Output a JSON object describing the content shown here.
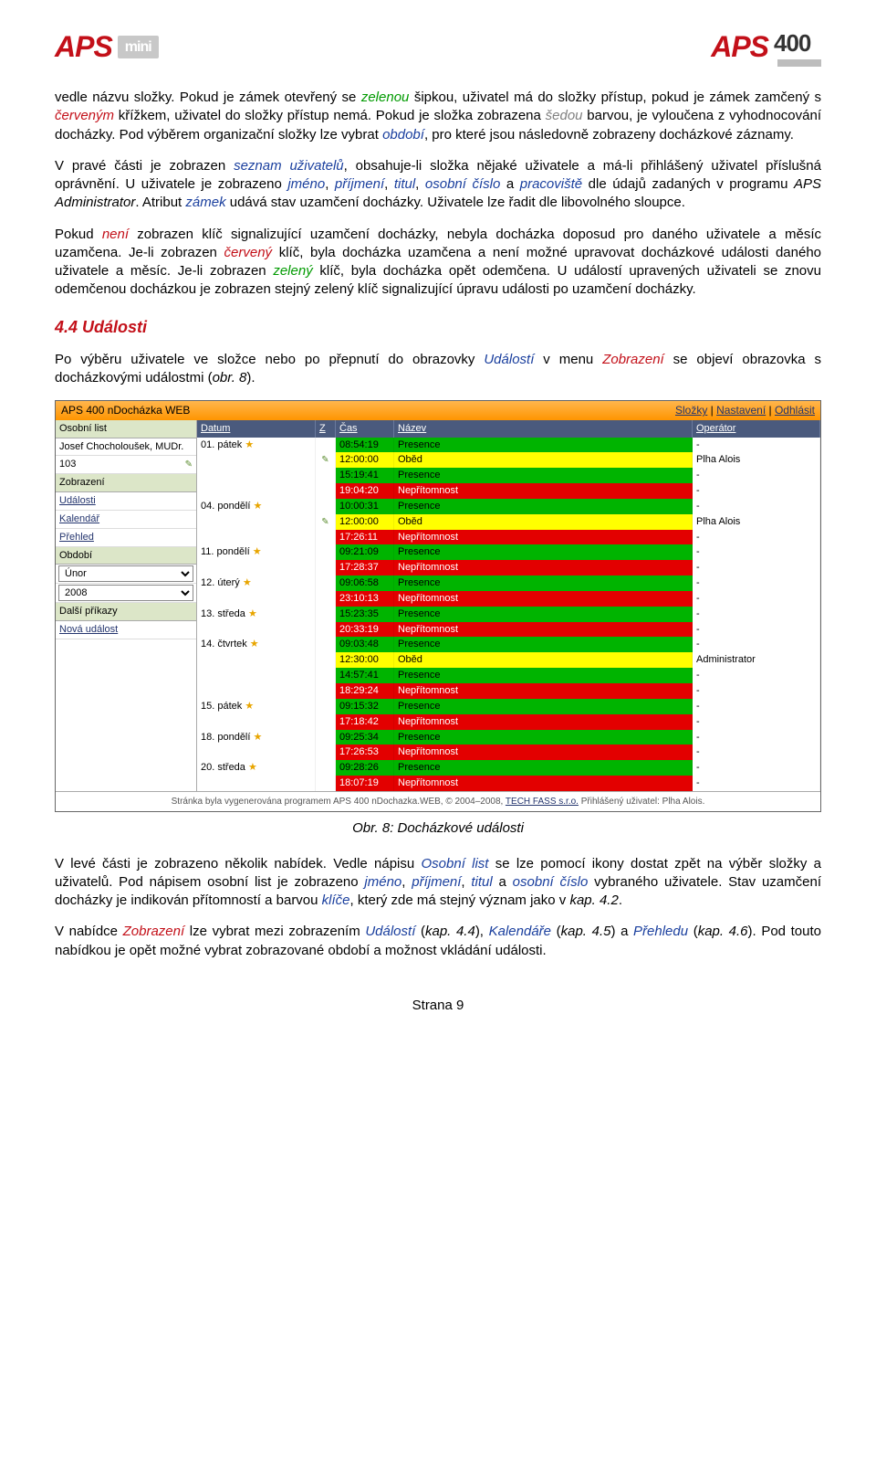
{
  "logos": {
    "left_aps": "APS",
    "left_sub": "mini",
    "right_aps": "APS",
    "right_num": "400"
  },
  "paragraphs": {
    "p1a": "vedle názvu složky. Pokud je zámek otevřený se ",
    "p1_green": "zelenou",
    "p1b": " šipkou, uživatel má do složky přístup, pokud je zámek zamčený s ",
    "p1_red": "červeným",
    "p1c": " křížkem, uživatel do složky přístup nemá. Pokud je složka zobrazena ",
    "p1_grey": "šedou",
    "p1d": " barvou, je vyloučena z vyhodnocování docházky. Pod výběrem organizační složky lze vybrat ",
    "p1_obdobi": "období",
    "p1e": ", pro které jsou následovně zobrazeny docházkové záznamy.",
    "p2a": "V pravé části je zobrazen ",
    "p2_seznam": "seznam uživatelů",
    "p2b": ", obsahuje-li složka nějaké uživatele a má-li přihlášený uživatel příslušná oprávnění. U uživatele je zobrazeno ",
    "p2_jmeno": "jméno",
    "p2c": ", ",
    "p2_prijmeni": "příjmení",
    "p2d": ", ",
    "p2_titul": "titul",
    "p2e": ", ",
    "p2_osobni": "osobní číslo",
    "p2f": " a ",
    "p2_prac": "pracoviště",
    "p2g": " dle údajů zadaných v programu ",
    "p2_aps": "APS Administrator",
    "p2h": ". Atribut ",
    "p2_zamek": "zámek",
    "p2i": " udává stav uzamčení docházky. Uživatele lze řadit dle libovolného sloupce.",
    "p3a": "Pokud ",
    "p3_neni": "není",
    "p3b": " zobrazen klíč signalizující uzamčení docházky, nebyla docházka doposud pro daného uživatele a měsíc uzamčena. Je-li zobrazen ",
    "p3_red": "červený",
    "p3c": " klíč, byla docházka uzamčena a není možné upravovat docházkové události daného uživatele a měsíc. Je-li zobrazen ",
    "p3_green": "zelený",
    "p3d": " klíč, byla docházka opět odemčena. U událostí upravených uživateli se znovu odemčenou docházkou je zobrazen stejný zelený klíč signalizující úpravu události po uzamčení docházky.",
    "h4": "4.4 Události",
    "p4a": "Po výběru uživatele ve složce nebo po přepnutí do obrazovky ",
    "p4_ud": "Událostí",
    "p4b": " v menu ",
    "p4_zo": "Zobrazení",
    "p4c": " se objeví obrazovka s docházkovými událostmi (",
    "p4_obr": "obr. 8",
    "p4d": ").",
    "caption": "Obr. 8: Docházkové události",
    "p5a": "V levé části je zobrazeno několik nabídek. Vedle nápisu ",
    "p5_ol": "Osobní list",
    "p5b": " se lze pomocí ikony dostat zpět na výběr složky a uživatelů. Pod nápisem osobní list je zobrazeno ",
    "p5_jm": "jméno",
    "p5c": ", ",
    "p5_pr": "příjmení",
    "p5d": ", ",
    "p5_ti": "titul",
    "p5e": " a ",
    "p5_oc": "osobní číslo",
    "p5f": " vybraného uživatele. Stav uzamčení docházky je indikován přítomností a barvou ",
    "p5_kl": "klíče",
    "p5g": ", který zde má stejný význam jako v ",
    "p5_k42": "kap. 4.2",
    "p5h": ".",
    "p6a": "V nabídce ",
    "p6_zo": "Zobrazení",
    "p6b": " lze vybrat mezi zobrazením ",
    "p6_ud": "Událostí",
    "p6c": " (",
    "p6_k44": "kap. 4.4",
    "p6d": "), ",
    "p6_ka": "Kalendáře",
    "p6e": " (",
    "p6_k45": "kap. 4.5",
    "p6f": ") a ",
    "p6_pr": "Přehledu",
    "p6g": " (",
    "p6_k46": "kap. 4.6",
    "p6h": "). Pod touto nabídkou je opět možné vybrat zobrazované období a možnost vkládání události."
  },
  "screenshot": {
    "topbar_title": "APS 400 nDocházka WEB",
    "topbar_links": [
      "Složky",
      "Nastavení",
      "Odhlásit"
    ],
    "sidebar": {
      "sect_osobni": "Osobní list",
      "user_name": "Josef Chocholoušek, MUDr.",
      "user_num": "103",
      "sect_zobr": "Zobrazení",
      "links_zobr": [
        "Události",
        "Kalendář",
        "Přehled"
      ],
      "sect_obd": "Období",
      "sel_month": "Únor",
      "sel_year": "2008",
      "sect_dalsi": "Další příkazy",
      "link_nova": "Nová událost"
    },
    "grid": {
      "headers": [
        "Datum",
        "Z",
        "Čas",
        "Název",
        "Operátor"
      ],
      "colors": {
        "green": "#00b400",
        "yellow": "#ffff00",
        "red": "#e30000",
        "green_text": "#000000",
        "yellow_text": "#000000",
        "red_text": "#ffffff"
      },
      "rows": [
        {
          "date": "01. pátek",
          "star": true,
          "z": "",
          "cas": "08:54:19",
          "cbg": "green",
          "nazev": "Presence",
          "op": "-"
        },
        {
          "date": "",
          "star": false,
          "z": "✎",
          "cas": "12:00:00",
          "cbg": "yellow",
          "nazev": "Oběd",
          "op": "Plha Alois"
        },
        {
          "date": "",
          "star": false,
          "z": "",
          "cas": "15:19:41",
          "cbg": "green",
          "nazev": "Presence",
          "op": "-"
        },
        {
          "date": "",
          "star": false,
          "z": "",
          "cas": "19:04:20",
          "cbg": "red",
          "nazev": "Nepřítomnost",
          "op": "-"
        },
        {
          "date": "04. pondělí",
          "star": true,
          "z": "",
          "cas": "10:00:31",
          "cbg": "green",
          "nazev": "Presence",
          "op": "-"
        },
        {
          "date": "",
          "star": false,
          "z": "✎",
          "cas": "12:00:00",
          "cbg": "yellow",
          "nazev": "Oběd",
          "op": "Plha Alois"
        },
        {
          "date": "",
          "star": false,
          "z": "",
          "cas": "17:26:11",
          "cbg": "red",
          "nazev": "Nepřítomnost",
          "op": "-"
        },
        {
          "date": "11. pondělí",
          "star": true,
          "z": "",
          "cas": "09:21:09",
          "cbg": "green",
          "nazev": "Presence",
          "op": "-"
        },
        {
          "date": "",
          "star": false,
          "z": "",
          "cas": "17:28:37",
          "cbg": "red",
          "nazev": "Nepřítomnost",
          "op": "-"
        },
        {
          "date": "12. úterý",
          "star": true,
          "z": "",
          "cas": "09:06:58",
          "cbg": "green",
          "nazev": "Presence",
          "op": "-"
        },
        {
          "date": "",
          "star": false,
          "z": "",
          "cas": "23:10:13",
          "cbg": "red",
          "nazev": "Nepřítomnost",
          "op": "-"
        },
        {
          "date": "13. středa",
          "star": true,
          "z": "",
          "cas": "15:23:35",
          "cbg": "green",
          "nazev": "Presence",
          "op": "-"
        },
        {
          "date": "",
          "star": false,
          "z": "",
          "cas": "20:33:19",
          "cbg": "red",
          "nazev": "Nepřítomnost",
          "op": "-"
        },
        {
          "date": "14. čtvrtek",
          "star": true,
          "z": "",
          "cas": "09:03:48",
          "cbg": "green",
          "nazev": "Presence",
          "op": "-"
        },
        {
          "date": "",
          "star": false,
          "z": "",
          "cas": "12:30:00",
          "cbg": "yellow",
          "nazev": "Oběd",
          "op": "Administrator"
        },
        {
          "date": "",
          "star": false,
          "z": "",
          "cas": "14:57:41",
          "cbg": "green",
          "nazev": "Presence",
          "op": "-"
        },
        {
          "date": "",
          "star": false,
          "z": "",
          "cas": "18:29:24",
          "cbg": "red",
          "nazev": "Nepřítomnost",
          "op": "-"
        },
        {
          "date": "15. pátek",
          "star": true,
          "z": "",
          "cas": "09:15:32",
          "cbg": "green",
          "nazev": "Presence",
          "op": "-"
        },
        {
          "date": "",
          "star": false,
          "z": "",
          "cas": "17:18:42",
          "cbg": "red",
          "nazev": "Nepřítomnost",
          "op": "-"
        },
        {
          "date": "18. pondělí",
          "star": true,
          "z": "",
          "cas": "09:25:34",
          "cbg": "green",
          "nazev": "Presence",
          "op": "-"
        },
        {
          "date": "",
          "star": false,
          "z": "",
          "cas": "17:26:53",
          "cbg": "red",
          "nazev": "Nepřítomnost",
          "op": "-"
        },
        {
          "date": "20. středa",
          "star": true,
          "z": "",
          "cas": "09:28:26",
          "cbg": "green",
          "nazev": "Presence",
          "op": "-"
        },
        {
          "date": "",
          "star": false,
          "z": "",
          "cas": "18:07:19",
          "cbg": "red",
          "nazev": "Nepřítomnost",
          "op": "-"
        }
      ]
    },
    "footer_a": "Stránka byla vygenerována programem APS 400 nDochazka.WEB, © 2004–2008, ",
    "footer_link": "TECH FASS s.r.o.",
    "footer_b": " Přihlášený uživatel: Plha Alois."
  },
  "page_footer": "Strana 9"
}
